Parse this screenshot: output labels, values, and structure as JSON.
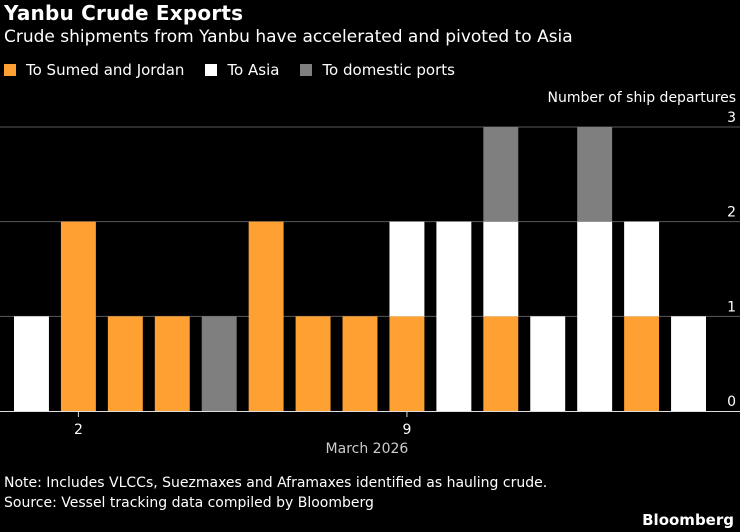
{
  "header": {
    "title": "Yanbu Crude Exports",
    "subtitle": "Crude shipments from Yanbu have accelerated and pivoted to Asia"
  },
  "colors": {
    "background": "#000000",
    "text": "#ffffff",
    "gridline": "#5a5a5a",
    "axis": "#dddddd"
  },
  "chart_data": {
    "type": "bar",
    "stacked": true,
    "title": "Yanbu Crude Exports",
    "subtitle": "Crude shipments from Yanbu have accelerated and pivoted to Asia",
    "ylabel": "Number of ship departures",
    "xlabel": "March 2026",
    "ylim": [
      0,
      3
    ],
    "yticks": [
      "0",
      "1",
      "2",
      "3"
    ],
    "categories": [
      "1",
      "2",
      "3",
      "4",
      "5",
      "6",
      "7",
      "8",
      "9",
      "10",
      "11",
      "12",
      "13",
      "14",
      "15"
    ],
    "xtick_labels": [
      {
        "category": "2",
        "label": "2"
      },
      {
        "category": "9",
        "label": "9"
      }
    ],
    "legend_position": "top-left",
    "series": [
      {
        "name": "To Sumed and Jordan",
        "color": "#ffa132",
        "values": [
          0,
          2,
          1,
          1,
          0,
          2,
          1,
          1,
          1,
          0,
          1,
          0,
          0,
          1,
          0
        ]
      },
      {
        "name": "To Asia",
        "color": "#ffffff",
        "values": [
          1,
          0,
          0,
          0,
          0,
          0,
          0,
          0,
          1,
          2,
          1,
          1,
          2,
          1,
          1
        ]
      },
      {
        "name": "To domestic ports",
        "color": "#7f7f7f",
        "values": [
          0,
          0,
          0,
          0,
          1,
          0,
          0,
          0,
          0,
          0,
          1,
          0,
          1,
          0,
          0
        ]
      }
    ]
  },
  "footer": {
    "note": "Note: Includes VLCCs, Suezmaxes and Aframaxes identified as hauling crude.",
    "source": "Source: Vessel tracking data compiled by Bloomberg",
    "brand": "Bloomberg"
  }
}
